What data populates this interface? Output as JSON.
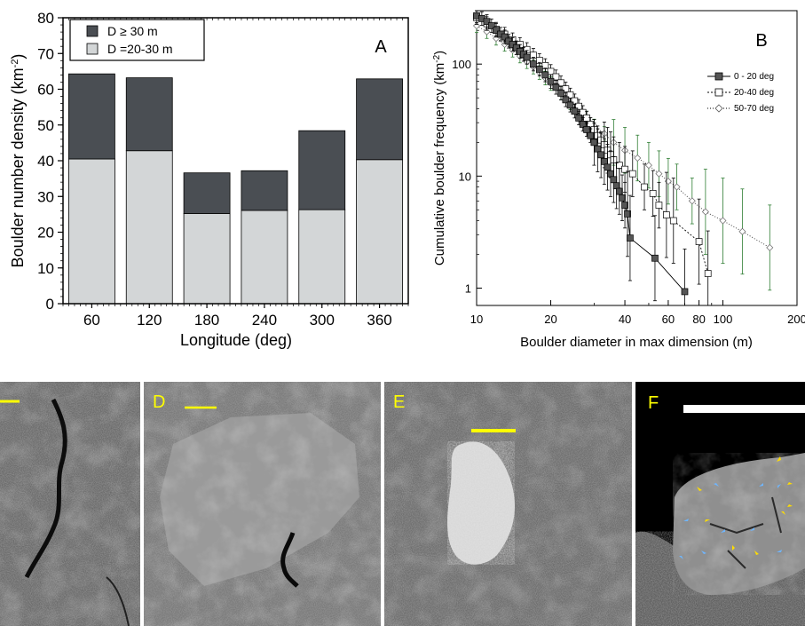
{
  "chart_data": [
    {
      "type": "bar",
      "panel_label": "A",
      "stacked": true,
      "categories": [
        "60",
        "120",
        "180",
        "240",
        "300",
        "360"
      ],
      "series": [
        {
          "name": "D =20-30 m",
          "values": [
            40.5,
            42.8,
            25.2,
            26.1,
            26.3,
            40.3
          ],
          "color": "#d3d6d7"
        },
        {
          "name": "D ≥ 30 m",
          "values": [
            23.8,
            20.4,
            11.4,
            11.1,
            22.1,
            22.6
          ],
          "color": "#4a4e53"
        }
      ],
      "xlabel": "Longitude (deg)",
      "ylabel": "Boulder number density (km",
      "ylabel_sup": "-2",
      "ylabel_close": ")",
      "ylim": [
        0,
        80
      ],
      "yticks": [
        "0",
        "10",
        "20",
        "30",
        "40",
        "50",
        "60",
        "70",
        "80"
      ],
      "legend_placement": "top-left"
    },
    {
      "type": "scatter",
      "panel_label": "B",
      "xscale": "log",
      "yscale": "log",
      "xlabel": "Boulder diameter in max dimension (m)",
      "ylabel": "Cumulative boulder frequency (km",
      "ylabel_sup": "-2",
      "ylabel_close": ")",
      "xlim": [
        10,
        200
      ],
      "ylim": [
        0.7,
        300
      ],
      "xticks": [
        "10",
        "20",
        "40",
        "60",
        "80",
        "100",
        "200"
      ],
      "yticks": [
        "1",
        "10",
        "100"
      ],
      "legend_placement": "right",
      "series": [
        {
          "name": "0 - 20 deg",
          "marker": "filled-square",
          "x": [
            10,
            10.5,
            11,
            11.5,
            12,
            12.5,
            13,
            13.5,
            14,
            14.5,
            15,
            15.5,
            16,
            17,
            18,
            19,
            20,
            21,
            22,
            23,
            24,
            25,
            26,
            27,
            28,
            29,
            30,
            31,
            32,
            33,
            34,
            35,
            36,
            37,
            38,
            39,
            40,
            41,
            42,
            53,
            70
          ],
          "y": [
            270,
            255,
            240,
            220,
            200,
            185,
            175,
            160,
            150,
            140,
            130,
            122,
            115,
            100,
            90,
            80,
            70,
            62,
            55,
            48,
            43,
            38,
            33,
            29,
            26,
            23,
            20,
            17.5,
            15.5,
            13.5,
            12,
            10.5,
            9.3,
            8.2,
            7.3,
            6.4,
            5.5,
            4.6,
            2.8,
            1.85,
            0.93
          ]
        },
        {
          "name": "20-40 deg",
          "marker": "open-square",
          "x": [
            10,
            11,
            12,
            13,
            14,
            15,
            16,
            17,
            18,
            19,
            20,
            21,
            22,
            23,
            24,
            25,
            26,
            27,
            28,
            29,
            30,
            31,
            32,
            33,
            34,
            35,
            36,
            38,
            40,
            43,
            48,
            52,
            55,
            59,
            63,
            80,
            87
          ],
          "y": [
            260,
            230,
            205,
            185,
            165,
            150,
            135,
            120,
            108,
            97,
            86,
            77,
            68,
            60,
            53,
            47,
            42,
            37,
            33,
            29,
            26,
            23,
            21,
            19,
            17,
            15.5,
            14,
            12.5,
            11.5,
            10.5,
            8,
            7,
            5.5,
            4.5,
            4,
            2.6,
            1.35
          ]
        },
        {
          "name": "50-70 deg",
          "marker": "open-diamond",
          "color": "#2e7d32",
          "x": [
            10,
            11,
            12,
            13,
            14,
            15,
            16,
            17,
            18,
            19,
            20,
            22,
            24,
            26,
            28,
            30,
            33,
            36,
            40,
            45,
            50,
            55,
            60,
            65,
            75,
            85,
            100,
            120,
            155
          ],
          "y": [
            220,
            195,
            170,
            150,
            133,
            118,
            105,
            94,
            84,
            75,
            67,
            55,
            45,
            38,
            33,
            28,
            24,
            20,
            17,
            14.5,
            12.5,
            10.5,
            9,
            8,
            6,
            4.8,
            4,
            3.2,
            2.3
          ]
        }
      ]
    }
  ],
  "images": {
    "panels": [
      {
        "id": "C",
        "label": ""
      },
      {
        "id": "D",
        "label": "D"
      },
      {
        "id": "E",
        "label": "E"
      },
      {
        "id": "F",
        "label": "F"
      }
    ]
  },
  "colors": {
    "panel_label": "#ffff00",
    "dark_bar": "#4a4e53",
    "light_bar": "#d3d6d7",
    "green_series": "#2e7d32",
    "arrow_yellow": "#ffdd00",
    "arrow_blue": "#6fb6ff"
  }
}
